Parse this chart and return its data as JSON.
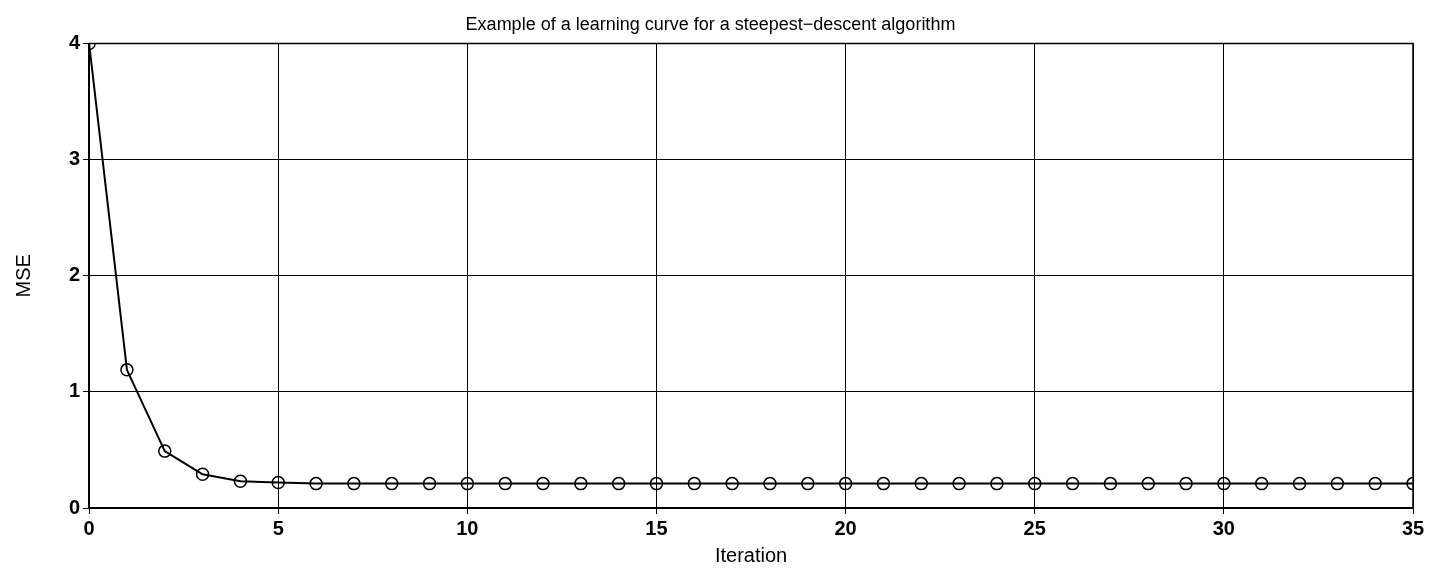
{
  "chart_data": {
    "type": "line",
    "title": "Example of a learning curve for a steepest−descent algorithm",
    "xlabel": "Iteration",
    "ylabel": "MSE",
    "x": [
      0,
      1,
      2,
      3,
      4,
      5,
      6,
      7,
      8,
      9,
      10,
      11,
      12,
      13,
      14,
      15,
      16,
      17,
      18,
      19,
      20,
      21,
      22,
      23,
      24,
      25,
      26,
      27,
      28,
      29,
      30,
      31,
      32,
      33,
      34,
      35
    ],
    "series": [
      {
        "color": "#000000",
        "values": [
          4,
          1.19,
          0.49,
          0.29,
          0.23,
          0.22,
          0.21,
          0.21,
          0.21,
          0.21,
          0.21,
          0.21,
          0.21,
          0.21,
          0.21,
          0.21,
          0.21,
          0.21,
          0.21,
          0.21,
          0.21,
          0.21,
          0.21,
          0.21,
          0.21,
          0.21,
          0.21,
          0.21,
          0.21,
          0.21,
          0.21,
          0.21,
          0.21,
          0.21,
          0.21,
          0.21
        ]
      }
    ],
    "xlim": [
      0,
      35
    ],
    "xticks": [
      0,
      5,
      10,
      15,
      20,
      25,
      30,
      35
    ],
    "ylim": [
      0,
      4
    ],
    "yticks": [
      0,
      1,
      2,
      3,
      4
    ],
    "grid": true,
    "marker": "circle",
    "line_style": "solid",
    "legend": false
  }
}
